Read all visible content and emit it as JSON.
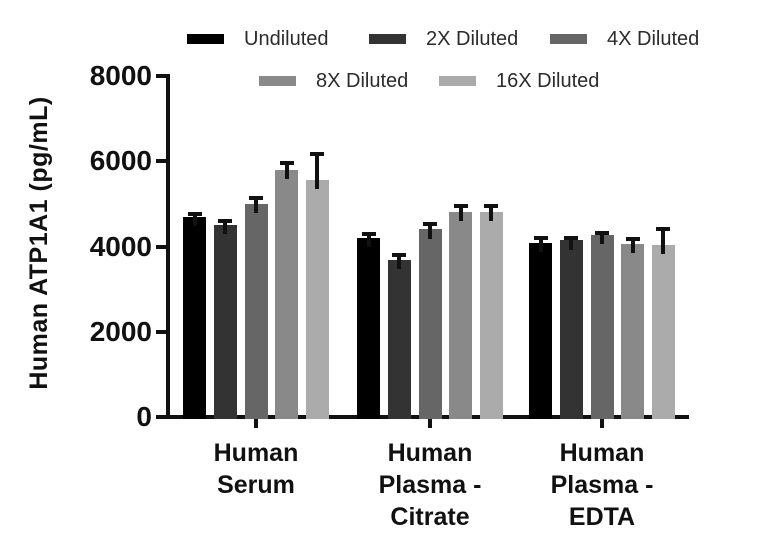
{
  "chart_data": {
    "type": "bar",
    "grouped": true,
    "title": "",
    "xlabel": "",
    "ylabel": "Human ATP1A1 (pg/mL)",
    "ylim": [
      0,
      8000
    ],
    "yticks": [
      0,
      2000,
      4000,
      6000,
      8000
    ],
    "grid": false,
    "legend_position": "top",
    "error_bars": "upper, black caps",
    "categories": [
      "Human Serum",
      "Human Plasma - Citrate",
      "Human Plasma - EDTA"
    ],
    "category_lines": [
      [
        "Human",
        "Serum"
      ],
      [
        "Human",
        "Plasma -",
        "Citrate"
      ],
      [
        "Human",
        "Plasma -",
        "EDTA"
      ]
    ],
    "series": [
      {
        "name": "Undiluted",
        "color": "#000000",
        "values": [
          4700,
          4200,
          4080
        ],
        "errors": [
          60,
          90,
          120
        ]
      },
      {
        "name": "2X Diluted",
        "color": "#333333",
        "values": [
          4500,
          3680,
          4150
        ],
        "errors": [
          100,
          110,
          60
        ]
      },
      {
        "name": "4X Diluted",
        "color": "#666666",
        "values": [
          5000,
          4400,
          4270
        ],
        "errors": [
          140,
          130,
          50
        ]
      },
      {
        "name": "8X Diluted",
        "color": "#898989",
        "values": [
          5800,
          4820,
          4050
        ],
        "errors": [
          170,
          130,
          120
        ]
      },
      {
        "name": "16X Diluted",
        "color": "#ababab",
        "values": [
          5560,
          4800,
          4030
        ],
        "errors": [
          600,
          150,
          370
        ]
      }
    ],
    "colors": {
      "axis": "#111111",
      "background": "#ffffff",
      "error_bar": "#111111"
    }
  }
}
